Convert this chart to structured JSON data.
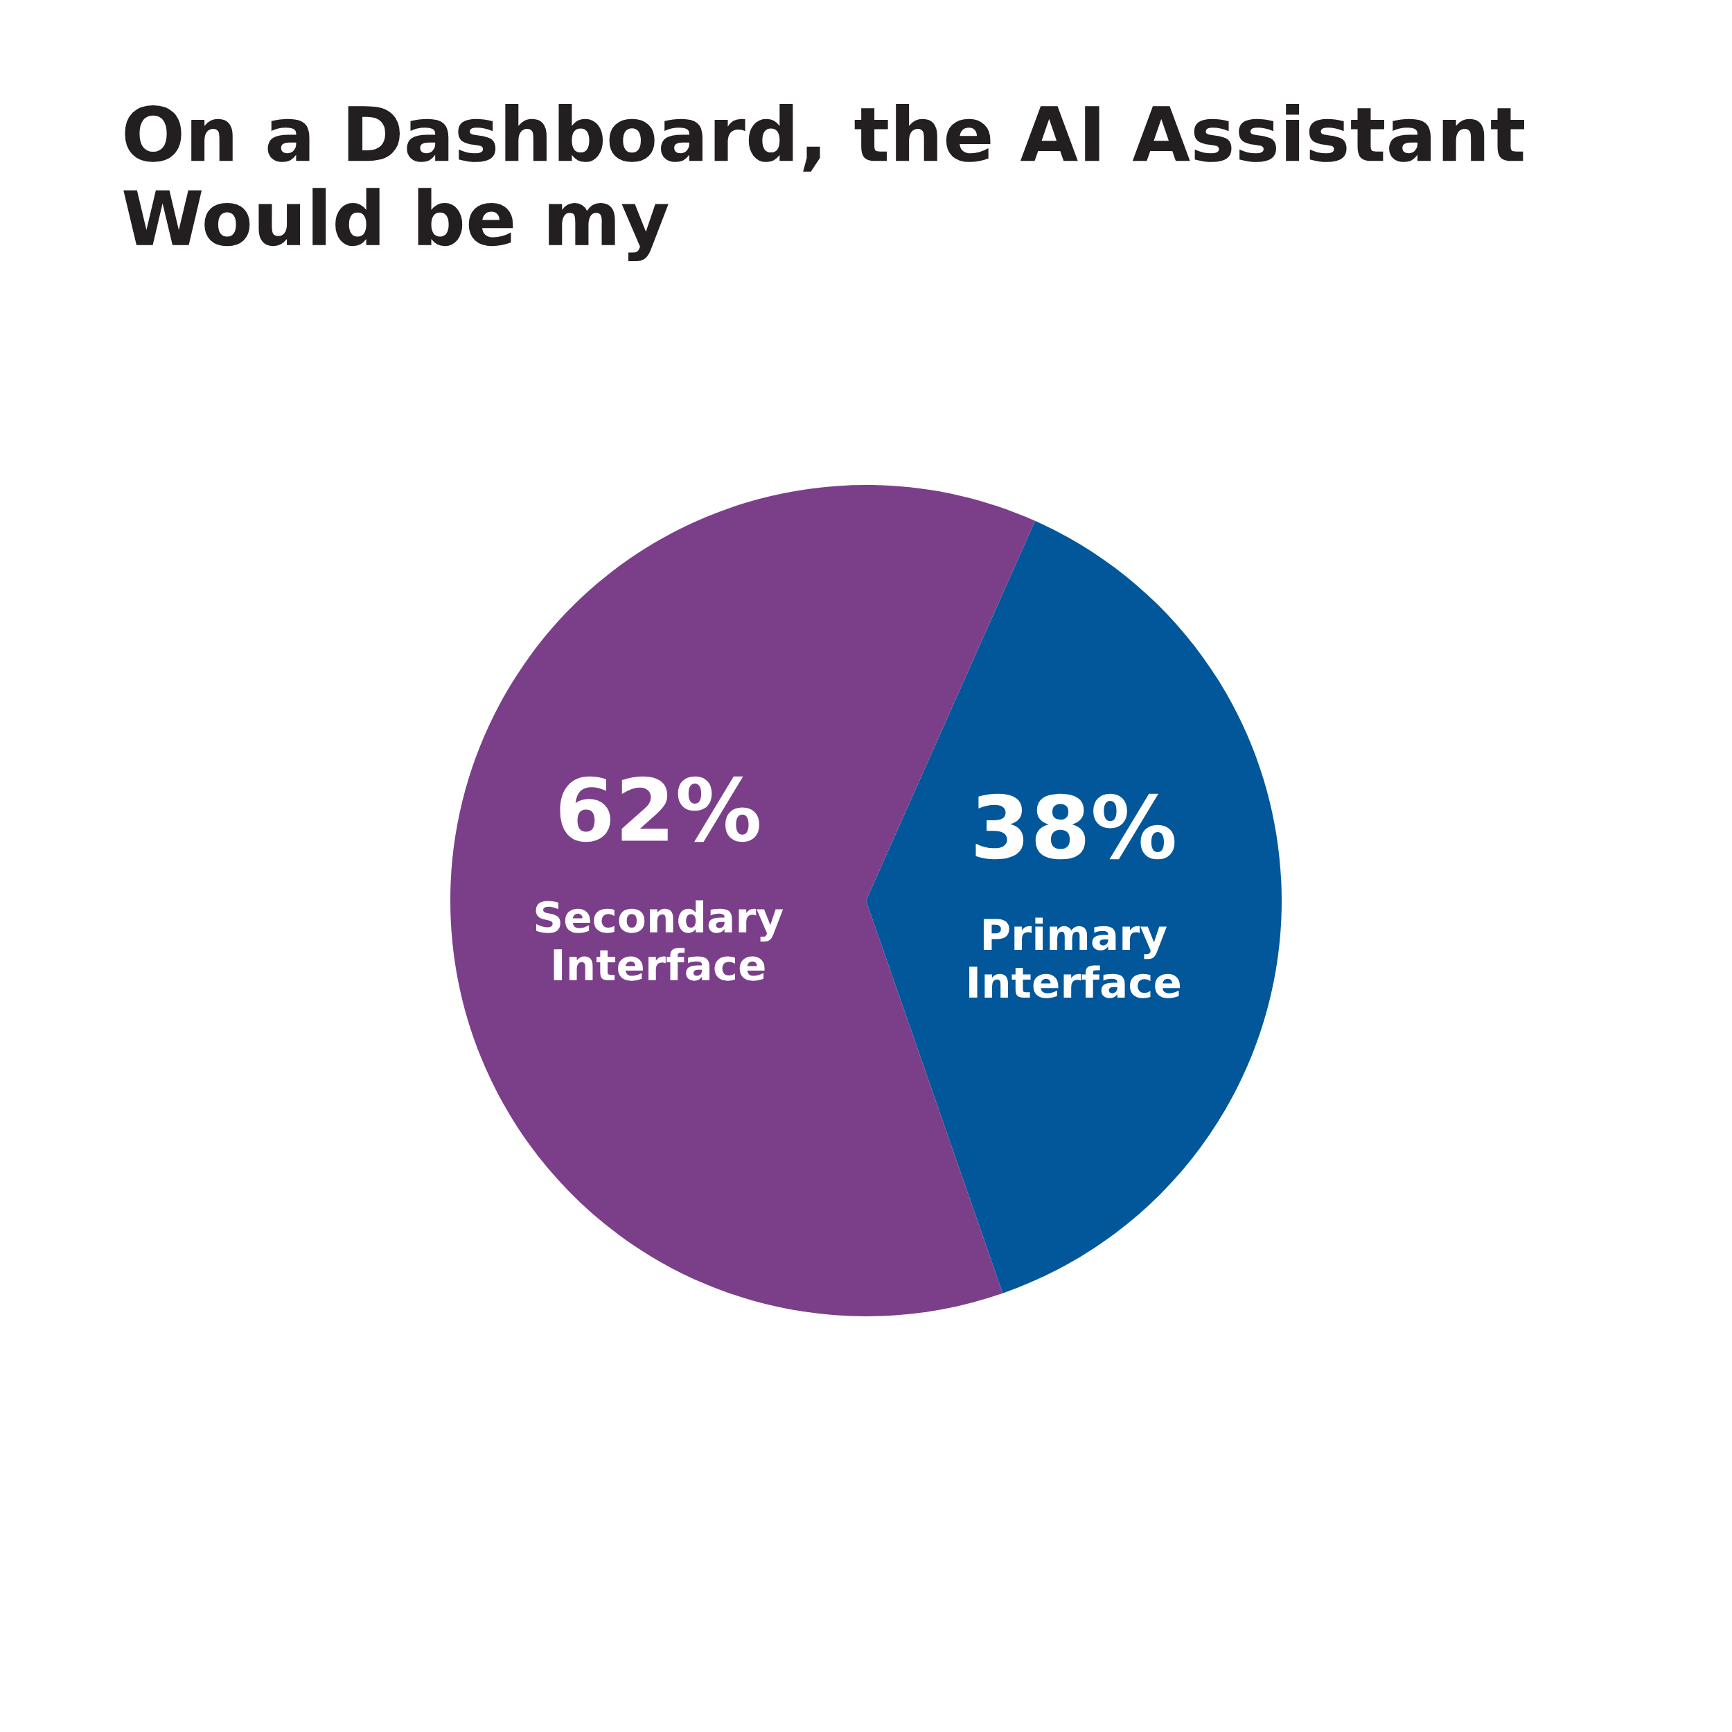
{
  "chart_data": {
    "type": "pie",
    "title": "On a Dashboard, the AI Assistant Would be my",
    "categories": [
      "Primary Interface",
      "Secondary Interface"
    ],
    "values": [
      38,
      62
    ],
    "colors": [
      "#02579a",
      "#7b3f8a"
    ],
    "value_labels": [
      "38%",
      "62%"
    ],
    "legend": false
  }
}
